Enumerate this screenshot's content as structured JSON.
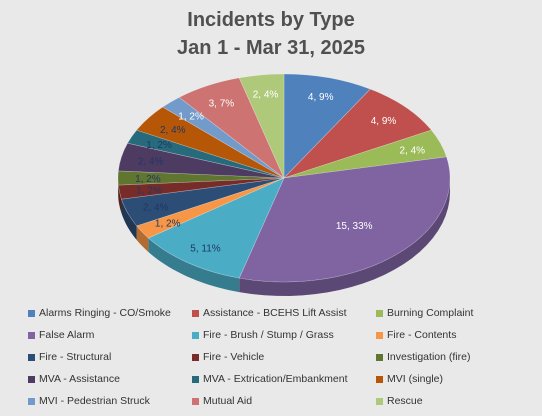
{
  "chart_data": {
    "type": "pie",
    "title_line1": "Incidents by Type",
    "title_line2": "Jan 1 - Mar 31, 2025",
    "legend_position": "bottom",
    "slices": [
      {
        "label": "Alarms Ringing - CO/Smoke",
        "value": 4,
        "data_label": "4, 9%",
        "color": "#4f81bd",
        "label_color": "#ffffff"
      },
      {
        "label": "Assistance - BCEHS Lift Assist",
        "value": 4,
        "data_label": "4, 9%",
        "color": "#c0504d",
        "label_color": "#ffffff"
      },
      {
        "label": "Burning Complaint",
        "value": 2,
        "data_label": "2, 4%",
        "color": "#9bbb59",
        "label_color": "#ffffff"
      },
      {
        "label": "False Alarm",
        "value": 15,
        "data_label": "15, 33%",
        "color": "#8064a2",
        "label_color": "#ffffff"
      },
      {
        "label": "Fire - Brush / Stump / Grass",
        "value": 5,
        "data_label": "5, 11%",
        "color": "#4bacc6",
        "label_color": "#1f3864"
      },
      {
        "label": "Fire - Contents",
        "value": 1,
        "data_label": "1, 2%",
        "color": "#f79646",
        "label_color": "#1f3864"
      },
      {
        "label": "Fire - Structural",
        "value": 2,
        "data_label": "2, 4%",
        "color": "#2c4d75",
        "label_color": "#1f3864"
      },
      {
        "label": "Fire - Vehicle",
        "value": 1,
        "data_label": "1, 2%",
        "color": "#772c2a",
        "label_color": "#1f3864"
      },
      {
        "label": "Investigation (fire)",
        "value": 1,
        "data_label": "1, 2%",
        "color": "#5f7530",
        "label_color": "#1f3864"
      },
      {
        "label": "MVA - Assistance",
        "value": 2,
        "data_label": "2, 4%",
        "color": "#4d3b62",
        "label_color": "#1f3864"
      },
      {
        "label": "MVA - Extrication/Embankment",
        "value": 1,
        "data_label": "1, 2%",
        "color": "#276a7c",
        "label_color": "#1f3864"
      },
      {
        "label": "MVI (single)",
        "value": 2,
        "data_label": "2, 4%",
        "color": "#b65708",
        "label_color": "#1f3864"
      },
      {
        "label": "MVI - Pedestrian Struck",
        "value": 1,
        "data_label": "1, 2%",
        "color": "#729aca",
        "label_color": "#ffffff"
      },
      {
        "label": "Mutual Aid",
        "value": 3,
        "data_label": "3, 7%",
        "color": "#cd7371",
        "label_color": "#ffffff"
      },
      {
        "label": "Rescue",
        "value": 2,
        "data_label": "2, 4%",
        "color": "#afc97a",
        "label_color": "#ffffff"
      }
    ]
  }
}
